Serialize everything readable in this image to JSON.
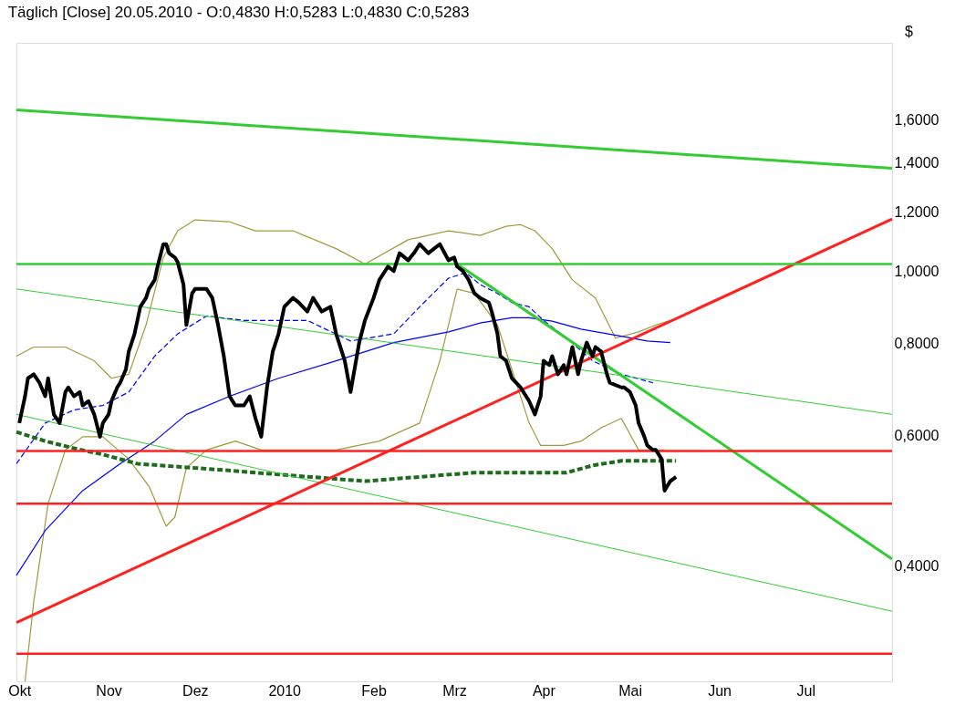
{
  "chart_data": {
    "type": "line",
    "title": "Täglich [Close]  20.05.2010 - O:0,4830 H:0,5283 L:0,4830 C:0,5283",
    "ylabel": "$",
    "log": "y",
    "grid": false,
    "marker": "none",
    "xlim": [
      "2009-09-30",
      "2010-07-31"
    ],
    "xticks": [
      {
        "value": "2009-10-01",
        "label": "Okt"
      },
      {
        "value": "2009-11-01",
        "label": "Nov"
      },
      {
        "value": "2009-12-01",
        "label": "Dez"
      },
      {
        "value": "2010-01-01",
        "label": "2010"
      },
      {
        "value": "2010-02-01",
        "label": "Feb"
      },
      {
        "value": "2010-03-01",
        "label": "Mrz"
      },
      {
        "value": "2010-04-01",
        "label": "Apr"
      },
      {
        "value": "2010-05-01",
        "label": "Mai"
      },
      {
        "value": "2010-06-01",
        "label": "Jun"
      },
      {
        "value": "2010-07-01",
        "label": "Jul"
      }
    ],
    "ylim": [
      0.28,
      2.03
    ],
    "yticks": [
      {
        "value": 0.4,
        "label": "0,4000"
      },
      {
        "value": 0.6,
        "label": "0,6000"
      },
      {
        "value": 0.8,
        "label": "0,8000"
      },
      {
        "value": 1.0,
        "label": "1,0000"
      },
      {
        "value": 1.2,
        "label": "1,2000"
      },
      {
        "value": 1.4,
        "label": "1,4000"
      },
      {
        "value": 1.6,
        "label": "1,6000"
      }
    ],
    "series": [
      {
        "color": "#a09a3c",
        "line_style": "solid",
        "x": [
          "2009-09-30",
          "2009-10-06",
          "2009-10-17",
          "2009-10-27",
          "2009-11-02",
          "2009-11-08",
          "2009-11-14",
          "2009-11-20",
          "2009-11-25",
          "2009-12-01",
          "2009-12-13",
          "2009-12-22",
          "2010-01-04",
          "2010-01-19",
          "2010-01-29",
          "2010-02-13",
          "2010-02-27",
          "2010-03-10",
          "2010-03-19",
          "2010-03-24",
          "2010-03-29",
          "2010-04-04",
          "2010-04-11",
          "2010-04-19",
          "2010-04-26",
          "2010-05-04",
          "2010-05-10",
          "2010-05-15"
        ],
        "values": [
          0.768,
          0.79,
          0.79,
          0.757,
          0.717,
          0.726,
          0.846,
          1.043,
          1.133,
          1.172,
          1.165,
          1.133,
          1.133,
          1.072,
          1.022,
          1.102,
          1.133,
          1.117,
          1.149,
          1.155,
          1.133,
          1.072,
          0.973,
          0.92,
          0.812,
          0.828,
          0.846,
          0.858
        ]
      },
      {
        "color": "#a09a3c",
        "line_style": "solid",
        "x": [
          "2009-10-03",
          "2009-10-06",
          "2009-10-11",
          "2009-10-17",
          "2009-10-23",
          "2009-10-30",
          "2009-11-08",
          "2009-11-15",
          "2009-11-21",
          "2009-11-24",
          "2009-11-28",
          "2009-12-05",
          "2009-12-15",
          "2009-12-24",
          "2010-01-04",
          "2010-01-19",
          "2010-02-03",
          "2010-02-17",
          "2010-02-24",
          "2010-03-02",
          "2010-03-08",
          "2010-03-16",
          "2010-03-21",
          "2010-03-27",
          "2010-03-31",
          "2010-04-08",
          "2010-04-14",
          "2010-04-21",
          "2010-04-28",
          "2010-05-04",
          "2010-05-10",
          "2010-05-13"
        ],
        "values": [
          0.28,
          0.358,
          0.486,
          0.574,
          0.598,
          0.598,
          0.558,
          0.513,
          0.453,
          0.466,
          0.543,
          0.574,
          0.59,
          0.574,
          0.574,
          0.574,
          0.59,
          0.624,
          0.757,
          0.946,
          0.933,
          0.846,
          0.737,
          0.624,
          0.582,
          0.582,
          0.59,
          0.615,
          0.633,
          0.574,
          0.574,
          0.574
        ]
      },
      {
        "color": "#0000ff",
        "line_style": "solid",
        "x": [
          "2009-09-30",
          "2009-10-10",
          "2009-10-23",
          "2009-11-05",
          "2009-11-17",
          "2009-11-28",
          "2009-12-13",
          "2009-12-30",
          "2010-01-19",
          "2010-02-08",
          "2010-02-27",
          "2010-03-10",
          "2010-03-21",
          "2010-03-27",
          "2010-04-04",
          "2010-04-14",
          "2010-04-28",
          "2010-05-07",
          "2010-05-15"
        ],
        "values": [
          0.389,
          0.447,
          0.506,
          0.55,
          0.59,
          0.641,
          0.678,
          0.717,
          0.757,
          0.801,
          0.828,
          0.851,
          0.865,
          0.865,
          0.856,
          0.835,
          0.817,
          0.805,
          0.801
        ]
      },
      {
        "color": "#0000ff",
        "line_style": "dashed",
        "x": [
          "2009-09-30",
          "2009-10-10",
          "2009-10-20",
          "2009-10-30",
          "2009-11-08",
          "2009-11-17",
          "2009-11-25",
          "2009-12-05",
          "2009-12-18",
          "2009-12-30",
          "2010-01-09",
          "2010-01-24",
          "2010-02-08",
          "2010-02-17",
          "2010-02-27",
          "2010-03-05",
          "2010-03-10",
          "2010-03-16",
          "2010-03-21",
          "2010-03-27",
          "2010-04-01",
          "2010-04-09",
          "2010-04-18",
          "2010-04-28",
          "2010-05-09"
        ],
        "values": [
          0.55,
          0.624,
          0.65,
          0.659,
          0.687,
          0.768,
          0.823,
          0.87,
          0.858,
          0.858,
          0.858,
          0.805,
          0.823,
          0.895,
          0.978,
          0.995,
          0.959,
          0.933,
          0.907,
          0.895,
          0.858,
          0.812,
          0.757,
          0.726,
          0.707
        ]
      },
      {
        "color": "#1e6b1e",
        "line_style": "dashed",
        "x": [
          "2009-09-30",
          "2009-10-10",
          "2009-10-20",
          "2009-10-30",
          "2009-11-11",
          "2009-11-22",
          "2009-12-09",
          "2009-12-30",
          "2010-01-29",
          "2010-02-17",
          "2010-03-08",
          "2010-03-21",
          "2010-04-09",
          "2010-04-18",
          "2010-04-28",
          "2010-05-17"
        ],
        "values": [
          0.607,
          0.59,
          0.577,
          0.566,
          0.55,
          0.546,
          0.54,
          0.532,
          0.521,
          0.528,
          0.535,
          0.535,
          0.535,
          0.547,
          0.555,
          0.555
        ]
      },
      {
        "color": "#33cc33",
        "line_style": "solid",
        "x": [
          "2009-09-30",
          "2010-07-31"
        ],
        "values": [
          1.649,
          1.376
        ]
      },
      {
        "color": "#33cc33",
        "line_style": "solid",
        "x": [
          "2010-03-02",
          "2010-07-31"
        ],
        "values": [
          1.022,
          0.409
        ]
      },
      {
        "color": "#33cc33",
        "line_style": "solid",
        "x": [
          "2009-09-30",
          "2010-07-31"
        ],
        "values": [
          0.946,
          0.641
        ]
      },
      {
        "color": "#33cc33",
        "line_style": "solid",
        "x": [
          "2009-09-30",
          "2010-07-31"
        ],
        "values": [
          0.641,
          0.348
        ]
      },
      {
        "color": "#ff2020",
        "line_style": "solid",
        "x": [
          "2009-09-30",
          "2010-07-31"
        ],
        "values": [
          0.336,
          1.175
        ]
      },
      {
        "color": "#000000",
        "line_style": "solid",
        "x": [
          "2009-10-01",
          "2009-10-03",
          "2009-10-04",
          "2009-10-06",
          "2009-10-08",
          "2009-10-10",
          "2009-10-11",
          "2009-10-13",
          "2009-10-15",
          "2009-10-17",
          "2009-10-18",
          "2009-10-20",
          "2009-10-22",
          "2009-10-23",
          "2009-10-25",
          "2009-10-27",
          "2009-10-29",
          "2009-10-30",
          "2009-11-01",
          "2009-11-02",
          "2009-11-04",
          "2009-11-05",
          "2009-11-07",
          "2009-11-08",
          "2009-11-10",
          "2009-11-11",
          "2009-11-12",
          "2009-11-14",
          "2009-11-15",
          "2009-11-17",
          "2009-11-18",
          "2009-11-20",
          "2009-11-21",
          "2009-11-22",
          "2009-11-24",
          "2009-11-25",
          "2009-11-27",
          "2009-11-28",
          "2009-11-30",
          "2009-12-01",
          "2009-12-03",
          "2009-12-05",
          "2009-12-07",
          "2009-12-09",
          "2009-12-11",
          "2009-12-13",
          "2009-12-15",
          "2009-12-18",
          "2009-12-20",
          "2009-12-22",
          "2009-12-24",
          "2009-12-26",
          "2009-12-28",
          "2009-12-30",
          "2010-01-01",
          "2010-01-04",
          "2010-01-06",
          "2010-01-09",
          "2010-01-11",
          "2010-01-14",
          "2010-01-17",
          "2010-01-19",
          "2010-01-22",
          "2010-01-24",
          "2010-01-27",
          "2010-01-29",
          "2010-02-01",
          "2010-02-03",
          "2010-02-06",
          "2010-02-08",
          "2010-02-10",
          "2010-02-13",
          "2010-02-15",
          "2010-02-17",
          "2010-02-20",
          "2010-02-22",
          "2010-02-24",
          "2010-02-27",
          "2010-03-01",
          "2010-03-02",
          "2010-03-04",
          "2010-03-05",
          "2010-03-06",
          "2010-03-08",
          "2010-03-10",
          "2010-03-13",
          "2010-03-14",
          "2010-03-16",
          "2010-03-17",
          "2010-03-19",
          "2010-03-20",
          "2010-03-21",
          "2010-03-24",
          "2010-03-27",
          "2010-03-29",
          "2010-03-31",
          "2010-04-01",
          "2010-04-03",
          "2010-04-04",
          "2010-04-06",
          "2010-04-08",
          "2010-04-09",
          "2010-04-11",
          "2010-04-13",
          "2010-04-14",
          "2010-04-16",
          "2010-04-18",
          "2010-04-19",
          "2010-04-21",
          "2010-04-23",
          "2010-04-24",
          "2010-04-28",
          "2010-04-29",
          "2010-05-01",
          "2010-05-03",
          "2010-05-04",
          "2010-05-06",
          "2010-05-07",
          "2010-05-09",
          "2010-05-10",
          "2010-05-12",
          "2010-05-13",
          "2010-05-15",
          "2010-05-17"
        ],
        "values": [
          0.624,
          0.678,
          0.717,
          0.726,
          0.707,
          0.678,
          0.717,
          0.641,
          0.624,
          0.687,
          0.697,
          0.678,
          0.687,
          0.659,
          0.668,
          0.641,
          0.598,
          0.624,
          0.641,
          0.668,
          0.697,
          0.707,
          0.737,
          0.779,
          0.823,
          0.858,
          0.895,
          0.92,
          0.946,
          0.973,
          1.014,
          1.087,
          1.087,
          1.057,
          1.043,
          1.028,
          0.959,
          0.846,
          0.933,
          0.946,
          0.946,
          0.946,
          0.92,
          0.846,
          0.768,
          0.678,
          0.659,
          0.659,
          0.678,
          0.633,
          0.598,
          0.697,
          0.779,
          0.823,
          0.895,
          0.92,
          0.907,
          0.882,
          0.92,
          0.882,
          0.895,
          0.823,
          0.757,
          0.687,
          0.801,
          0.858,
          0.92,
          0.973,
          1.014,
          1.0,
          1.057,
          1.034,
          1.057,
          1.087,
          1.057,
          1.072,
          1.087,
          1.034,
          1.043,
          1.014,
          1.0,
          0.986,
          0.973,
          0.933,
          0.92,
          0.907,
          0.882,
          0.823,
          0.768,
          0.757,
          0.737,
          0.717,
          0.697,
          0.668,
          0.641,
          0.678,
          0.757,
          0.747,
          0.768,
          0.726,
          0.747,
          0.726,
          0.79,
          0.726,
          0.757,
          0.801,
          0.768,
          0.79,
          0.779,
          0.726,
          0.707,
          0.697,
          0.697,
          0.687,
          0.659,
          0.624,
          0.598,
          0.582,
          0.574,
          0.574,
          0.558,
          0.506,
          0.521,
          0.528
        ]
      }
    ],
    "ref_lines": [
      {
        "axis": "y",
        "value": 1.022,
        "color": "#33cc33"
      },
      {
        "axis": "y",
        "value": 0.572,
        "color": "#ff2020"
      },
      {
        "axis": "y",
        "value": 0.486,
        "color": "#ff2020"
      },
      {
        "axis": "y",
        "value": 0.305,
        "color": "#ff2020"
      }
    ]
  }
}
